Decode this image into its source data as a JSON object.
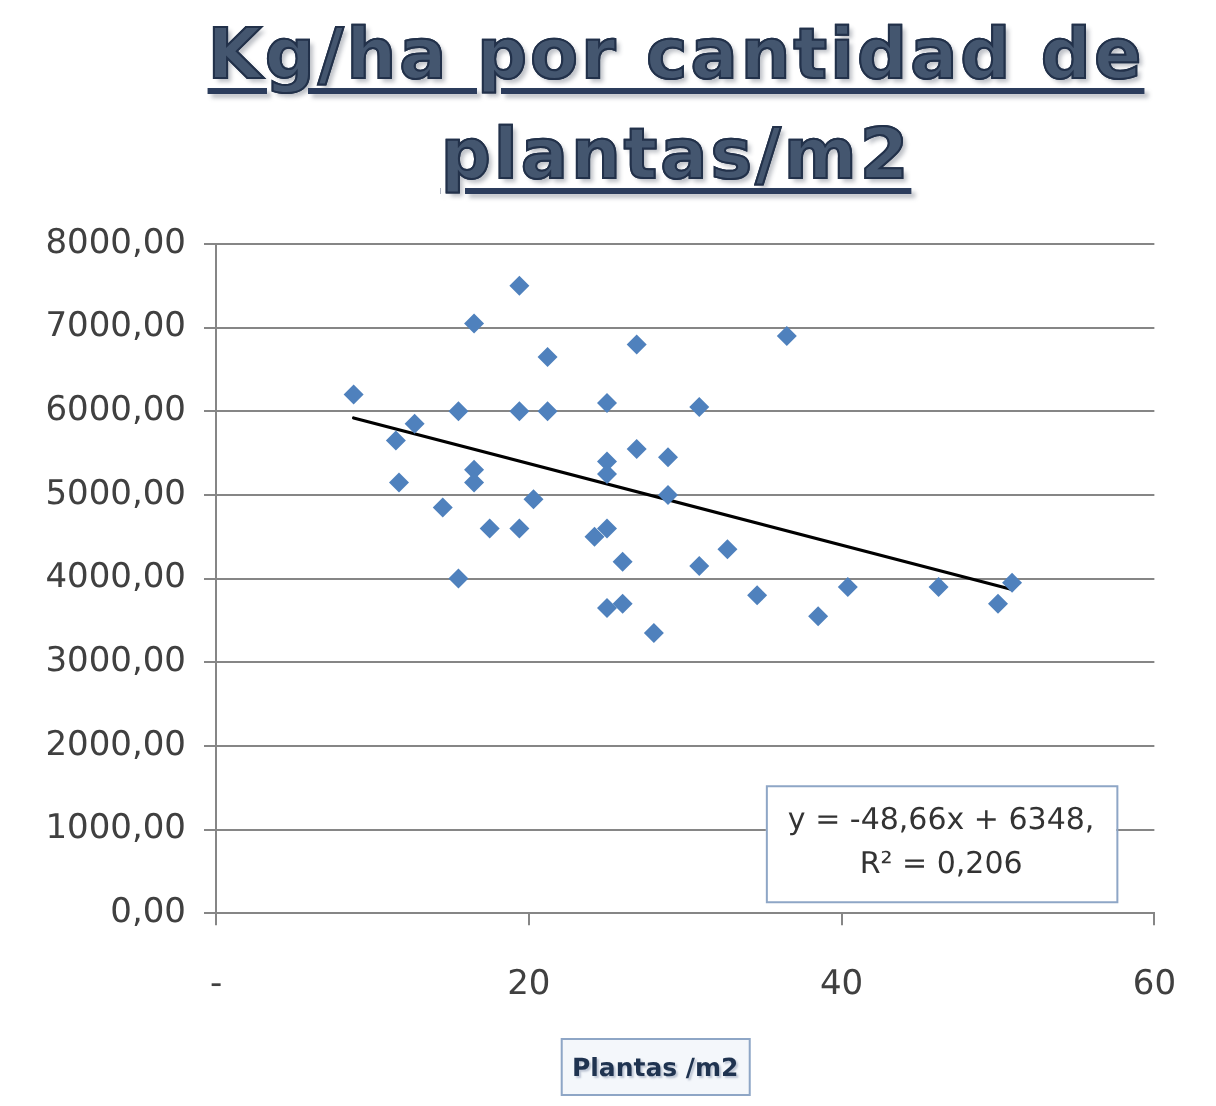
{
  "chart_data": {
    "type": "scatter",
    "title": "Kg/ha por cantidad de plantas/m2",
    "xlabel": "Plantas /m2",
    "annotations": [
      "y = -48,66x + 6348,\nR² = 0,206"
    ],
    "series": [
      {
        "color": "#4f81bd",
        "x": [
          8.8,
          11.5,
          12.7,
          11.7,
          14.5,
          15.5,
          15.5,
          16.5,
          16.5,
          16.5,
          17.5,
          19.4,
          19.4,
          19.4,
          20.3,
          21.2,
          21.2,
          24.2,
          25.0,
          25.0,
          25.0,
          25.0,
          26.0,
          25.0,
          26.0,
          26.9,
          26.9,
          28.0,
          28.9,
          28.9,
          30.9,
          30.9,
          32.7,
          34.6,
          36.5,
          38.5,
          40.4,
          46.2,
          50.0,
          50.9
        ],
        "values": [
          6200,
          5650,
          5850,
          5150,
          4850,
          4000,
          6000,
          7050,
          5300,
          5150,
          4600,
          4600,
          7500,
          6000,
          4950,
          6650,
          6000,
          4500,
          4600,
          6100,
          5400,
          5250,
          4200,
          3650,
          3700,
          6800,
          5550,
          3350,
          5450,
          5000,
          6050,
          4150,
          4350,
          3800,
          6900,
          3550,
          3900,
          3900,
          3700,
          3950
        ]
      },
      {
        "type": "line",
        "color": "#000000",
        "marker": "none",
        "x": [
          8.8,
          50.9
        ],
        "values": [
          5920,
          3870
        ]
      }
    ],
    "xlim": [
      0,
      60
    ],
    "xticks": [
      {
        "value": 0,
        "label": "-"
      },
      20,
      40,
      60
    ],
    "ylim": [
      0,
      8000
    ],
    "yticks": [
      {
        "value": 0,
        "label": "0,00"
      },
      {
        "value": 1000,
        "label": "1000,00"
      },
      {
        "value": 2000,
        "label": "2000,00"
      },
      {
        "value": 3000,
        "label": "3000,00"
      },
      {
        "value": 4000,
        "label": "4000,00"
      },
      {
        "value": 5000,
        "label": "5000,00"
      },
      {
        "value": 6000,
        "label": "6000,00"
      },
      {
        "value": 7000,
        "label": "7000,00"
      },
      {
        "value": 8000,
        "label": "8000,00"
      }
    ],
    "grid": "y",
    "marker": "diamond"
  }
}
